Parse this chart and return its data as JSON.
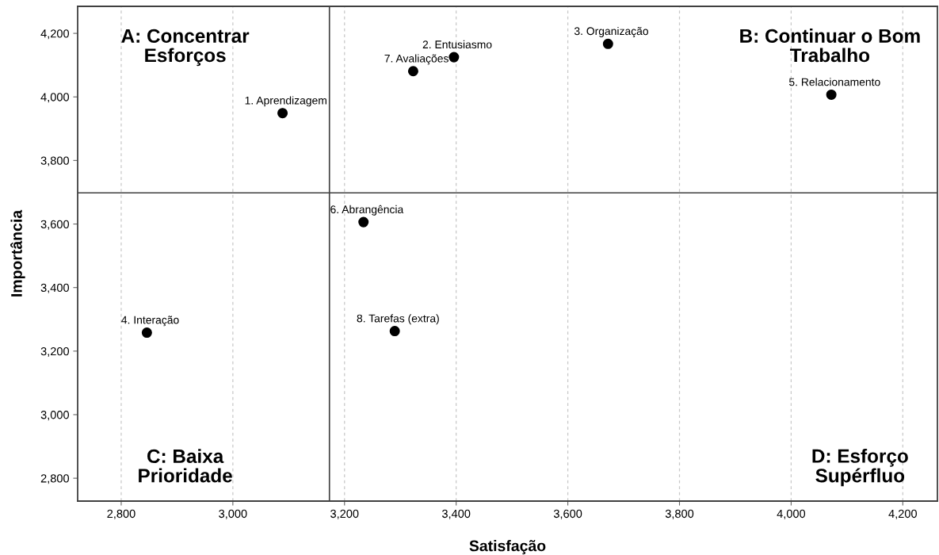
{
  "chart_data": {
    "type": "scatter",
    "xlabel": "Satisfação",
    "ylabel": "Importância",
    "series": [
      {
        "color": "#000000",
        "x": [
          3089,
          3396,
          3672,
          2846,
          4072,
          3234,
          3323,
          3290
        ],
        "values": [
          3949,
          4125,
          4167,
          3258,
          4007,
          3606,
          4081,
          3263
        ]
      }
    ],
    "marker": "circle",
    "xlim": [
      2722,
      4262
    ],
    "ylim": [
      2728,
      4285
    ],
    "xticks": [
      {
        "value": 2800,
        "label": "2,800"
      },
      {
        "value": 3000,
        "label": "3,000"
      },
      {
        "value": 3200,
        "label": "3,200"
      },
      {
        "value": 3400,
        "label": "3,400"
      },
      {
        "value": 3600,
        "label": "3,600"
      },
      {
        "value": 3800,
        "label": "3,800"
      },
      {
        "value": 4000,
        "label": "4,000"
      },
      {
        "value": 4200,
        "label": "4,200"
      }
    ],
    "yticks": [
      {
        "value": 2800,
        "label": "2,800"
      },
      {
        "value": 3000,
        "label": "3,000"
      },
      {
        "value": 3200,
        "label": "3,200"
      },
      {
        "value": 3400,
        "label": "3,400"
      },
      {
        "value": 3600,
        "label": "3,600"
      },
      {
        "value": 3800,
        "label": "3,800"
      },
      {
        "value": 4000,
        "label": "4,000"
      },
      {
        "value": 4200,
        "label": "4,200"
      }
    ],
    "grid": "x",
    "ref_lines": [
      {
        "axis": "x",
        "value": 3173,
        "color": "#404040"
      },
      {
        "axis": "y",
        "value": 3698,
        "color": "#404040"
      }
    ],
    "annotations": [
      {
        "text": "1. Aprendizagem",
        "x": 3089,
        "y": 3949
      },
      {
        "text": "2. Entusiasmo",
        "x": 3396,
        "y": 4125
      },
      {
        "text": "3. Organização",
        "x": 3672,
        "y": 4167
      },
      {
        "text": "4. Interação",
        "x": 2846,
        "y": 3258
      },
      {
        "text": "5. Relacionamento",
        "x": 4072,
        "y": 4007
      },
      {
        "text": "6. Abrangência",
        "x": 3234,
        "y": 3606
      },
      {
        "text": "7. Avaliações",
        "x": 3323,
        "y": 4081
      },
      {
        "text": "8. Tarefas (extra)",
        "x": 3290,
        "y": 3263
      },
      "A: Concentrar Esforços",
      "B: Continuar o Bom Trabalho",
      "C: Baixa Prioridade",
      "D: Esforço Supérfluo"
    ]
  }
}
